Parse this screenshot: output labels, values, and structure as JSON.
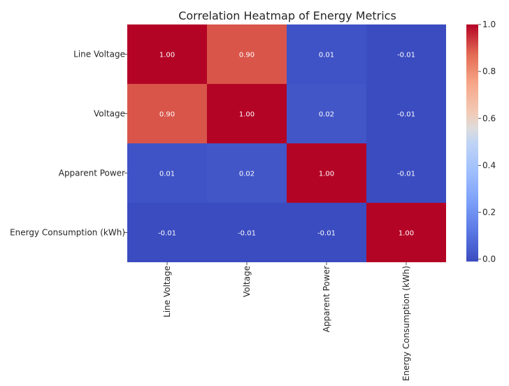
{
  "chart_data": {
    "type": "heatmap",
    "title": "Correlation Heatmap of Energy Metrics",
    "rows": [
      "Line Voltage",
      "Voltage",
      "Apparent Power",
      "Energy Consumption (kWh)"
    ],
    "columns": [
      "Line Voltage",
      "Voltage",
      "Apparent Power",
      "Energy Consumption (kWh)"
    ],
    "values": [
      [
        1.0,
        0.9,
        0.01,
        -0.01
      ],
      [
        0.9,
        1.0,
        0.02,
        -0.01
      ],
      [
        0.01,
        0.02,
        1.0,
        -0.01
      ],
      [
        -0.01,
        -0.01,
        -0.01,
        1.0
      ]
    ],
    "value_labels": [
      [
        "1.00",
        "0.90",
        "0.01",
        "-0.01"
      ],
      [
        "0.90",
        "1.00",
        "0.02",
        "-0.01"
      ],
      [
        "0.01",
        "0.02",
        "1.00",
        "-0.01"
      ],
      [
        "-0.01",
        "-0.01",
        "-0.01",
        "1.00"
      ]
    ],
    "colormap": "coolwarm",
    "colorbar": {
      "range": [
        -0.01,
        1.0
      ],
      "ticks": [
        "0.0",
        "0.2",
        "0.4",
        "0.6",
        "0.8",
        "1.0"
      ],
      "tick_values": [
        0.0,
        0.2,
        0.4,
        0.6,
        0.8,
        1.0
      ]
    }
  }
}
